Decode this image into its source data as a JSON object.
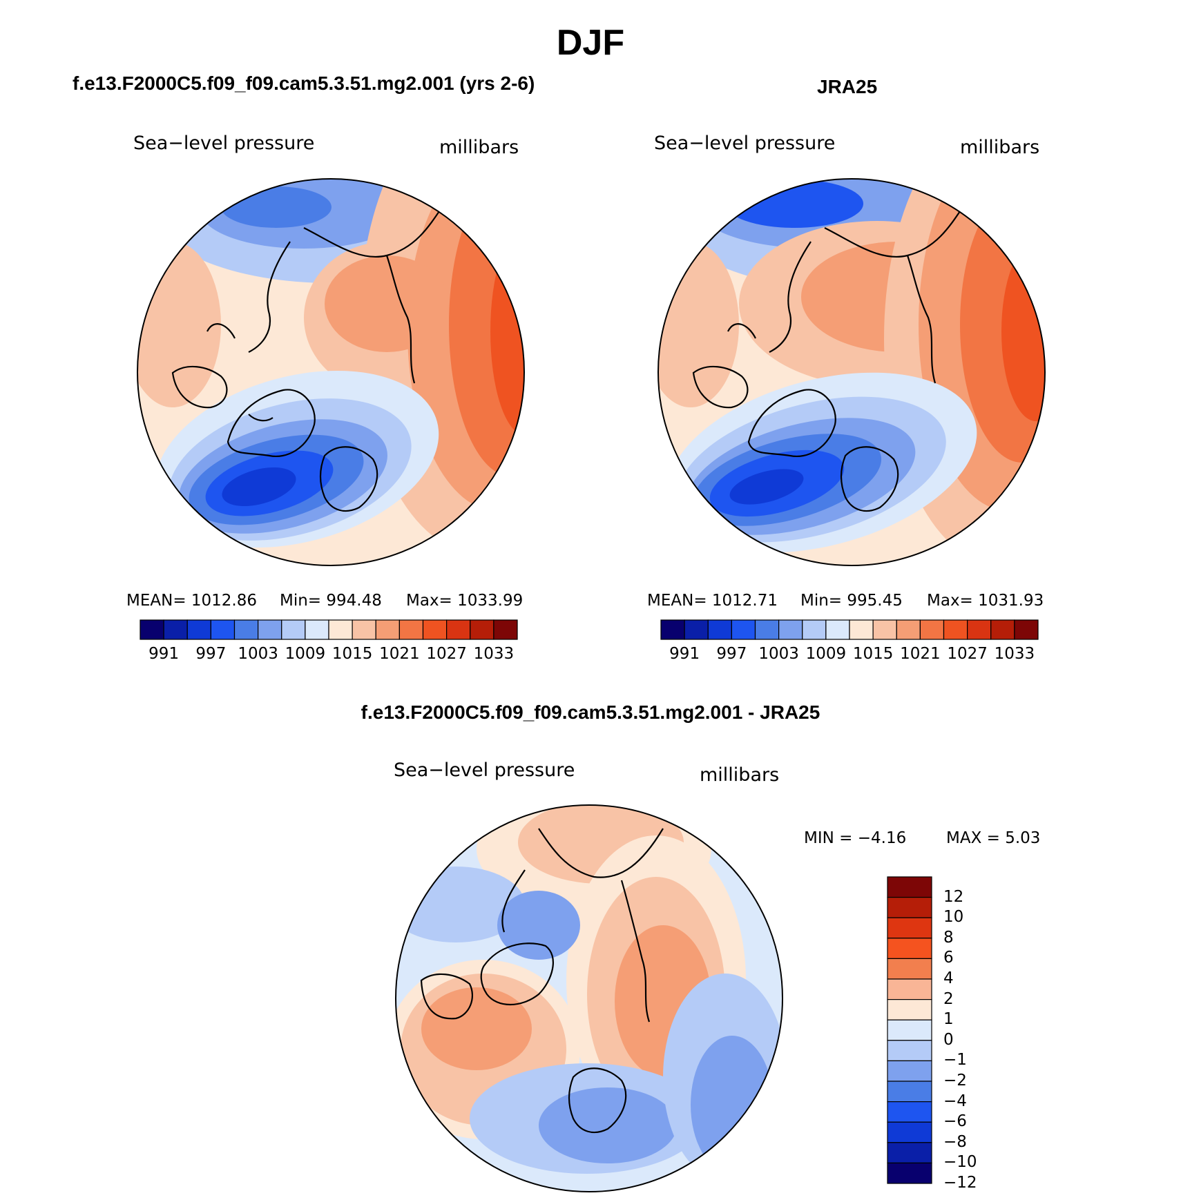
{
  "title": "DJF",
  "panels": [
    {
      "id": "model",
      "subtitle": "f.e13.F2000C5.f09_f09.cam5.3.51.mg2.001 (yrs 2-6)",
      "left_label": "Sea−level pressure",
      "right_label": "millibars",
      "stats": {
        "mean": "MEAN=  1012.86",
        "min": "Min=  994.48",
        "max": "Max=  1033.99"
      }
    },
    {
      "id": "obs",
      "subtitle": "JRA25",
      "left_label": "Sea−level pressure",
      "right_label": "millibars",
      "stats": {
        "mean": "MEAN=  1012.71",
        "min": "Min=  995.45",
        "max": "Max=  1031.93"
      }
    },
    {
      "id": "diff",
      "subtitle": "f.e13.F2000C5.f09_f09.cam5.3.51.mg2.001 - JRA25",
      "left_label": "Sea−level pressure",
      "right_label": "millibars",
      "stats": {
        "min": "MIN =   −4.16",
        "max": "MAX =     5.03"
      }
    }
  ],
  "colorbar_abs": {
    "colors": [
      "#08006e",
      "#0a1fa8",
      "#0f3ad6",
      "#1e55f0",
      "#4a7de6",
      "#7ea1ee",
      "#b4cbf7",
      "#dbe9fb",
      "#fde8d6",
      "#f8c3a6",
      "#f59e75",
      "#f27544",
      "#ef5321",
      "#d93412",
      "#b51e08",
      "#7d0606"
    ],
    "labels": [
      "991",
      "997",
      "1003",
      "1009",
      "1015",
      "1021",
      "1027",
      "1033"
    ]
  },
  "colorbar_diff": {
    "colors": [
      "#7d0606",
      "#b51e08",
      "#de3611",
      "#f5531f",
      "#f27f4e",
      "#f9b596",
      "#fde8d6",
      "#dbe9fb",
      "#b4cbf7",
      "#7ea1ee",
      "#4a7de6",
      "#1e55f0",
      "#0f3ad6",
      "#0a1fa8",
      "#08006e"
    ],
    "labels": [
      "12",
      "10",
      "8",
      "6",
      "4",
      "2",
      "1",
      "0",
      "−1",
      "−2",
      "−4",
      "−6",
      "−8",
      "−10",
      "−12"
    ]
  },
  "map_colors": {
    "deep_blue": "#0b25a0",
    "blue": "#3f72e3",
    "mid_blue": "#7ea1ee",
    "light_blue": "#b4cbf7",
    "pale_blue": "#dbe9fb",
    "pale_red": "#fde8d6",
    "light_red": "#f8c3a6",
    "salmon": "#f59e75",
    "orange": "#f27544",
    "red": "#ef5321",
    "dark_red": "#c5290c",
    "coast": "#000000"
  }
}
